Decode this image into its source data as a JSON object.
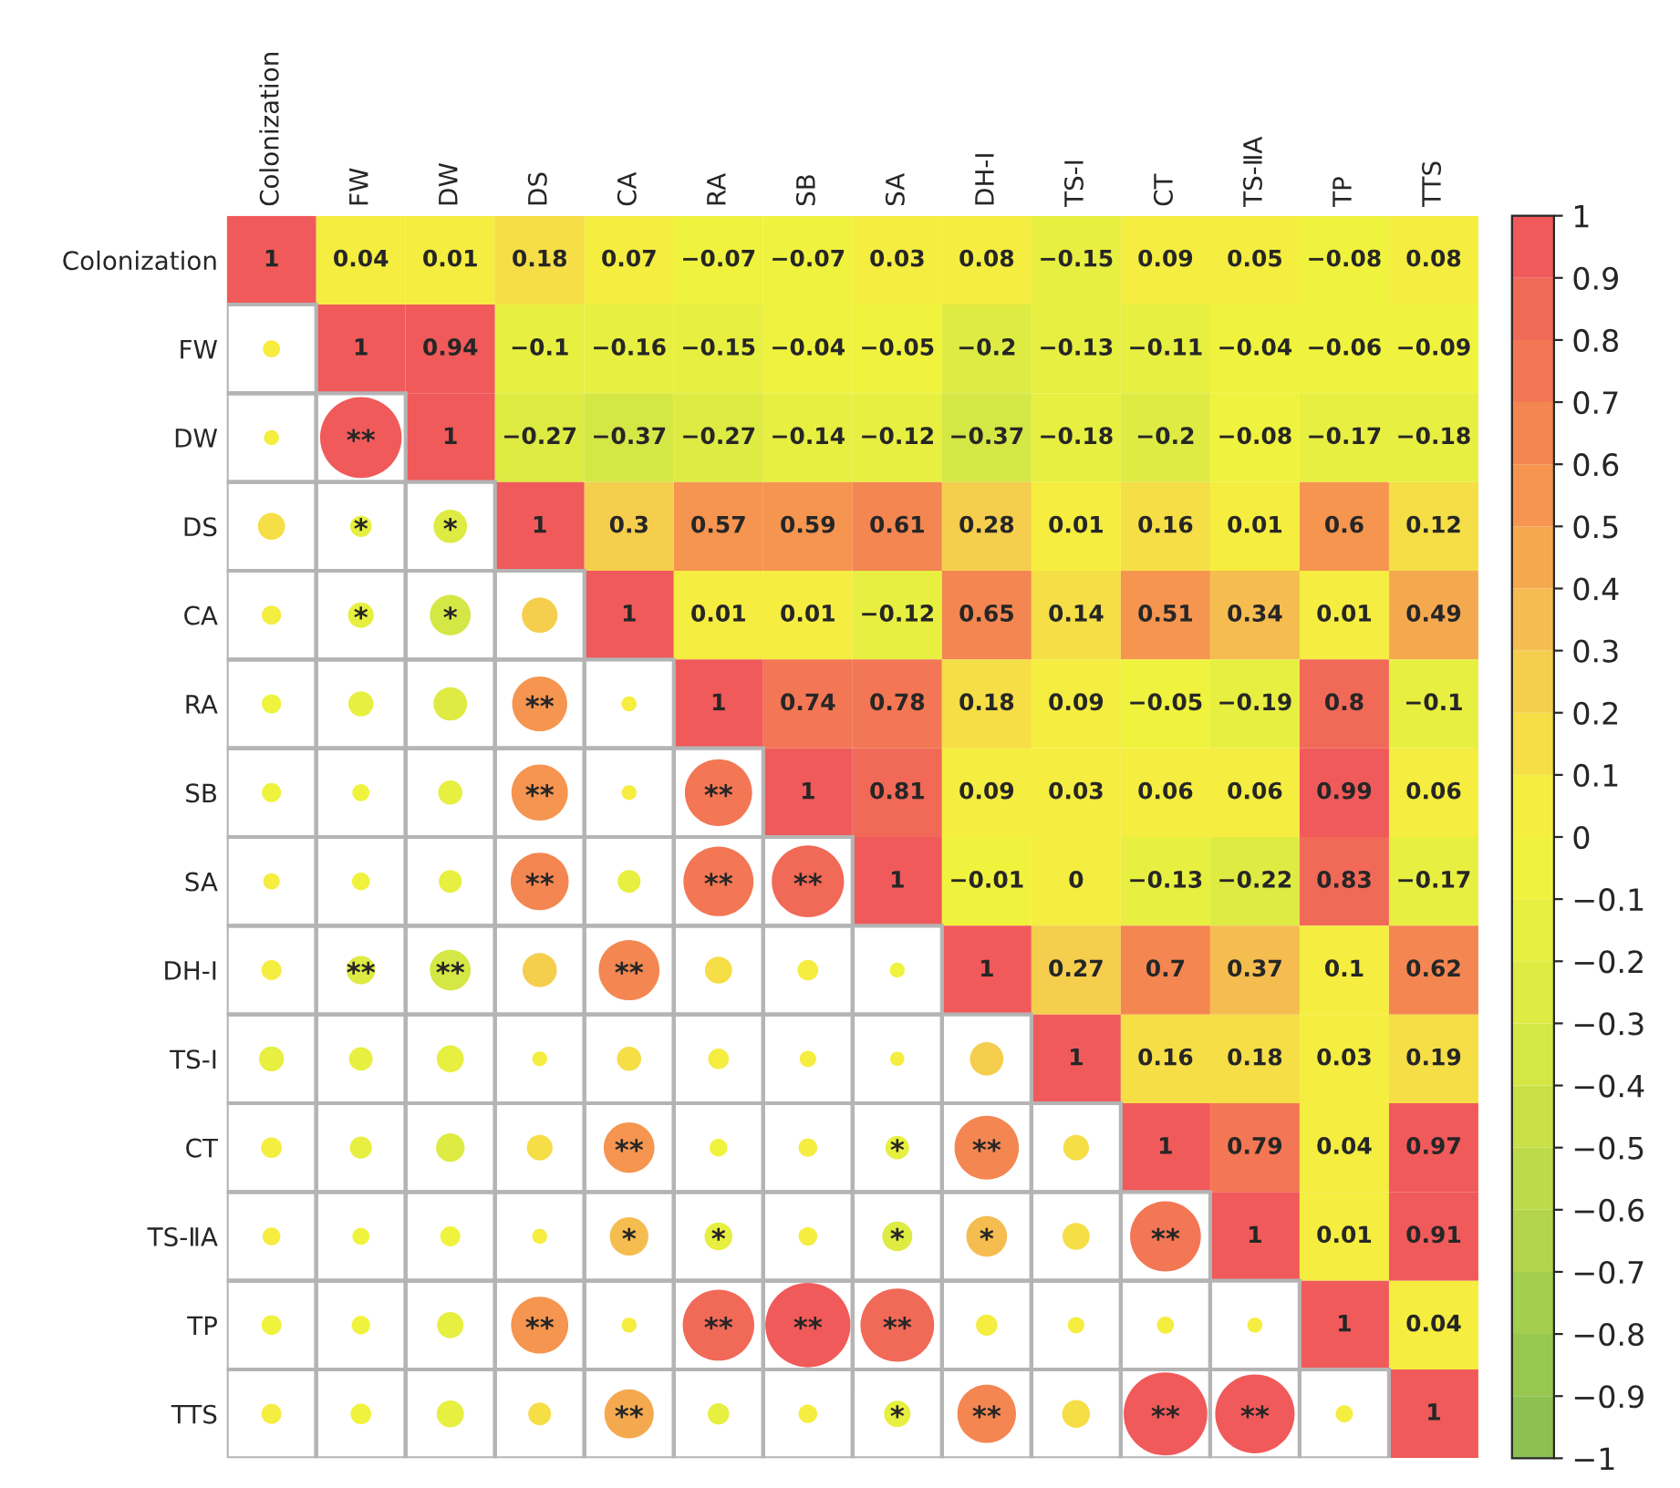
{
  "chart_data": {
    "type": "heatmap",
    "categories": [
      "Colonization",
      "FW",
      "DW",
      "DS",
      "CA",
      "RA",
      "SB",
      "SA",
      "DH-Ⅰ",
      "TS-Ⅰ",
      "CT",
      "TS-ⅡA",
      "TP",
      "TTS"
    ],
    "y_categories": [
      "Colonization",
      "FW",
      "DW",
      "DS",
      "CA",
      "RA",
      "SB",
      "SA",
      "DH-Ⅰ",
      "TS-Ⅰ",
      "CT",
      "TS-ⅡA",
      "TP",
      "TTS"
    ],
    "cells": [
      [
        1,
        0.04,
        0.01,
        0.18,
        0.07,
        -0.07,
        -0.07,
        0.03,
        0.08,
        -0.15,
        0.09,
        0.05,
        -0.08,
        0.08
      ],
      [
        null,
        1,
        0.94,
        -0.1,
        -0.16,
        -0.15,
        -0.04,
        -0.05,
        -0.2,
        -0.13,
        -0.11,
        -0.04,
        -0.06,
        -0.09
      ],
      [
        null,
        null,
        1,
        -0.27,
        -0.37,
        -0.27,
        -0.14,
        -0.12,
        -0.37,
        -0.18,
        -0.2,
        -0.08,
        -0.17,
        -0.18
      ],
      [
        null,
        null,
        null,
        1,
        0.3,
        0.57,
        0.59,
        0.61,
        0.28,
        0.01,
        0.16,
        0.01,
        0.6,
        0.12
      ],
      [
        null,
        null,
        null,
        null,
        1,
        0.01,
        0.01,
        -0.12,
        0.65,
        0.14,
        0.51,
        0.34,
        0.01,
        0.49
      ],
      [
        null,
        null,
        null,
        null,
        null,
        1,
        0.74,
        0.78,
        0.18,
        0.09,
        -0.05,
        -0.19,
        0.8,
        -0.1
      ],
      [
        null,
        null,
        null,
        null,
        null,
        null,
        1,
        0.81,
        0.09,
        0.03,
        0.06,
        0.06,
        0.99,
        0.06
      ],
      [
        null,
        null,
        null,
        null,
        null,
        null,
        null,
        1,
        -0.01,
        0,
        -0.13,
        -0.22,
        0.83,
        -0.17
      ],
      [
        null,
        null,
        null,
        null,
        null,
        null,
        null,
        null,
        1,
        0.27,
        0.7,
        0.37,
        0.1,
        0.62
      ],
      [
        null,
        null,
        null,
        null,
        null,
        null,
        null,
        null,
        null,
        1,
        0.16,
        0.18,
        0.03,
        0.19
      ],
      [
        null,
        null,
        null,
        null,
        null,
        null,
        null,
        null,
        null,
        null,
        1,
        0.79,
        0.04,
        0.97
      ],
      [
        null,
        null,
        null,
        null,
        null,
        null,
        null,
        null,
        null,
        null,
        null,
        1,
        0.01,
        0.91
      ],
      [
        null,
        null,
        null,
        null,
        null,
        null,
        null,
        null,
        null,
        null,
        null,
        null,
        1,
        0.04
      ],
      [
        null,
        null,
        null,
        null,
        null,
        null,
        null,
        null,
        null,
        null,
        null,
        null,
        null,
        1
      ]
    ],
    "cell_labels": [
      [
        "1",
        "0.04",
        "0.01",
        "0.18",
        "0.07",
        "−0.07",
        "−0.07",
        "0.03",
        "0.08",
        "−0.15",
        "0.09",
        "0.05",
        "−0.08",
        "0.08"
      ],
      [
        null,
        "1",
        "0.94",
        "−0.1",
        "−0.16",
        "−0.15",
        "−0.04",
        "−0.05",
        "−0.2",
        "−0.13",
        "−0.11",
        "−0.04",
        "−0.06",
        "−0.09"
      ],
      [
        null,
        "**",
        "1",
        "−0.27",
        "−0.37",
        "−0.27",
        "−0.14",
        "−0.12",
        "−0.37",
        "−0.18",
        "−0.2",
        "−0.08",
        "−0.17",
        "−0.18"
      ],
      [
        null,
        "*",
        "*",
        "1",
        "0.3",
        "0.57",
        "0.59",
        "0.61",
        "0.28",
        "0.01",
        "0.16",
        "0.01",
        "0.6",
        "0.12"
      ],
      [
        null,
        "*",
        "*",
        null,
        "1",
        "0.01",
        "0.01",
        "−0.12",
        "0.65",
        "0.14",
        "0.51",
        "0.34",
        "0.01",
        "0.49"
      ],
      [
        null,
        null,
        null,
        "**",
        null,
        "1",
        "0.74",
        "0.78",
        "0.18",
        "0.09",
        "−0.05",
        "−0.19",
        "0.8",
        "−0.1"
      ],
      [
        null,
        null,
        null,
        "**",
        null,
        "**",
        "1",
        "0.81",
        "0.09",
        "0.03",
        "0.06",
        "0.06",
        "0.99",
        "0.06"
      ],
      [
        null,
        null,
        null,
        "**",
        null,
        "**",
        "**",
        "1",
        "−0.01",
        "0",
        "−0.13",
        "−0.22",
        "0.83",
        "−0.17"
      ],
      [
        null,
        "**",
        "**",
        null,
        "**",
        null,
        null,
        null,
        "1",
        "0.27",
        "0.7",
        "0.37",
        "0.1",
        "0.62"
      ],
      [
        null,
        null,
        null,
        null,
        null,
        null,
        null,
        null,
        null,
        "1",
        "0.16",
        "0.18",
        "0.03",
        "0.19"
      ],
      [
        null,
        null,
        null,
        null,
        "**",
        null,
        null,
        "*",
        "**",
        null,
        "1",
        "0.79",
        "0.04",
        "0.97"
      ],
      [
        null,
        null,
        null,
        null,
        "*",
        "*",
        null,
        "*",
        "*",
        null,
        "**",
        "1",
        "0.01",
        "0.91"
      ],
      [
        null,
        null,
        null,
        "**",
        null,
        "**",
        "**",
        "**",
        null,
        null,
        null,
        null,
        "1",
        "0.04"
      ],
      [
        null,
        null,
        null,
        null,
        "**",
        null,
        null,
        "*",
        "**",
        null,
        "**",
        "**",
        null,
        "1"
      ]
    ],
    "clim": [
      -1,
      1
    ],
    "cticks": [
      {
        "value": -1,
        "label": "−1"
      },
      {
        "value": -0.9,
        "label": "−0.9"
      },
      {
        "value": -0.8,
        "label": "−0.8"
      },
      {
        "value": -0.7,
        "label": "−0.7"
      },
      {
        "value": -0.6,
        "label": "−0.6"
      },
      {
        "value": -0.5,
        "label": "−0.5"
      },
      {
        "value": -0.4,
        "label": "−0.4"
      },
      {
        "value": -0.3,
        "label": "−0.3"
      },
      {
        "value": -0.2,
        "label": "−0.2"
      },
      {
        "value": -0.1,
        "label": "−0.1"
      },
      0,
      0.1,
      0.2,
      0.3,
      0.4,
      0.5,
      0.6,
      0.7,
      0.8,
      0.9,
      1
    ]
  }
}
